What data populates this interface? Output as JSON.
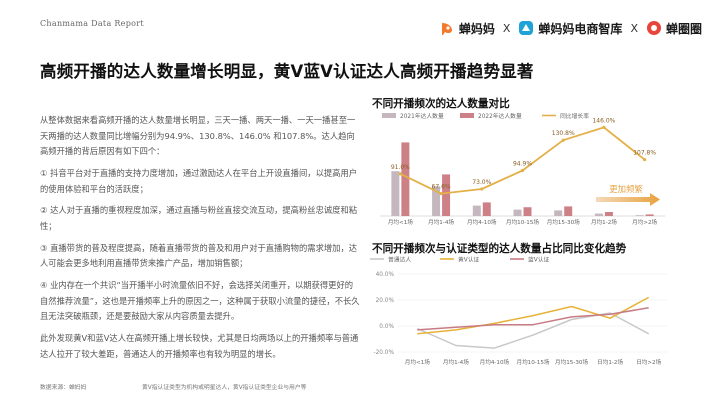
{
  "header": {
    "report_tag": "Chanmama Data Report",
    "brand_1": "蝉妈妈",
    "brand_2": "蝉妈妈电商智库",
    "brand_3": "蝉圈圈",
    "separator": "X"
  },
  "title": "高频开播的达人数量增长明显，黄V蓝V认证达人高频开播趋势显著",
  "body": {
    "paragraphs": [
      "从整体数据来看高频开播的达人数量增长明显，三天一播、两天一播、一天一播甚至一天两播的达人数量同比增幅分别为94.9%、130.8%、146.0% 和107.8%。达人趋向高频开播的背后原因有如下四个：",
      "① 抖音平台对于直播的支持力度增加，通过激励达人在平台上开设直播间，以提高用户的使用体验和平台的活跃度；",
      "② 达人对于直播的重视程度加深，通过直播与粉丝直接交流互动，提高粉丝忠诚度和粘性；",
      "③ 直播带货的普及程度提高，随着直播带货的普及和用户对于直播购物的需求增加，达人可能会更多地利用直播带货来推广产品，增加销售额；",
      "④ 业内存在一个共识“当开播半小时流量依旧不好，会选择关闭重开，以期获得更好的自然推荐流量”，这也是开播频率上升的原因之一，这种属于获取小流量的捷径，不长久且无法突破瓶颈，还是要鼓励大家从内容质量去提升。",
      "此外发现黄V和蓝V达人在高频开播上增长较快，尤其是日均两场以上的开播频率与普通达人拉开了较大差距，普通达人的开播频率也有较为明显的增长。"
    ]
  },
  "chart1": {
    "title": "不同开播频次的达人数量对比",
    "annotation": "更加频繁",
    "chart_data": {
      "type": "bar",
      "categories": [
        "月均<1场",
        "月均1-4场",
        "月均4-10场",
        "月均10-15场",
        "月均15-30场",
        "月均1-2场",
        "月均>2场"
      ],
      "series": [
        {
          "name": "2021年达人数量",
          "values": [
            0.56,
            0.37,
            0.13,
            0.08,
            0.07,
            0.03,
            0.01
          ],
          "color": "#c4b8be"
        },
        {
          "name": "2022年达人数量",
          "values": [
            0.92,
            0.52,
            0.17,
            0.11,
            0.12,
            0.05,
            0.02
          ],
          "color": "#cd8187"
        },
        {
          "name": "同比增长率",
          "values": [
            91.0,
            67.6,
            73.0,
            94.9,
            130.8,
            146.0,
            107.8
          ],
          "color": "#e4b048"
        }
      ],
      "data_labels": [
        "91.0%",
        "67.6%",
        "73.0%",
        "94.9%",
        "130.8%",
        "146.0%",
        "107.8%"
      ]
    }
  },
  "chart2": {
    "title": "不同开播频次与认证类型的达人数量占比同比变化趋势",
    "chart_data": {
      "type": "line",
      "categories": [
        "月均<1场",
        "月均1-4场",
        "月均4-10场",
        "月均10-15场",
        "月均15-30场",
        "日均1-2场",
        "日均>2场"
      ],
      "y_ticks": [
        "40.0%",
        "20.0%",
        "0.0%",
        "-20.0%"
      ],
      "ylim": [
        -20,
        40
      ],
      "series": [
        {
          "name": "普通达人",
          "values": [
            -2,
            -15,
            -17,
            -7,
            5,
            10,
            -6
          ],
          "color": "#c8c8c8"
        },
        {
          "name": "黄V认证",
          "values": [
            -6,
            -3,
            2,
            8,
            15,
            6,
            22
          ],
          "color": "#e6b238"
        },
        {
          "name": "蓝V认证",
          "values": [
            -3,
            -1,
            1,
            1,
            7,
            9,
            14
          ],
          "color": "#c77b84"
        }
      ]
    }
  },
  "footer": {
    "source": "数据来源：蝉妈妈",
    "note": "黄V指认证类型为机构或明星达人，黄V指认证类型企业与用户等"
  }
}
